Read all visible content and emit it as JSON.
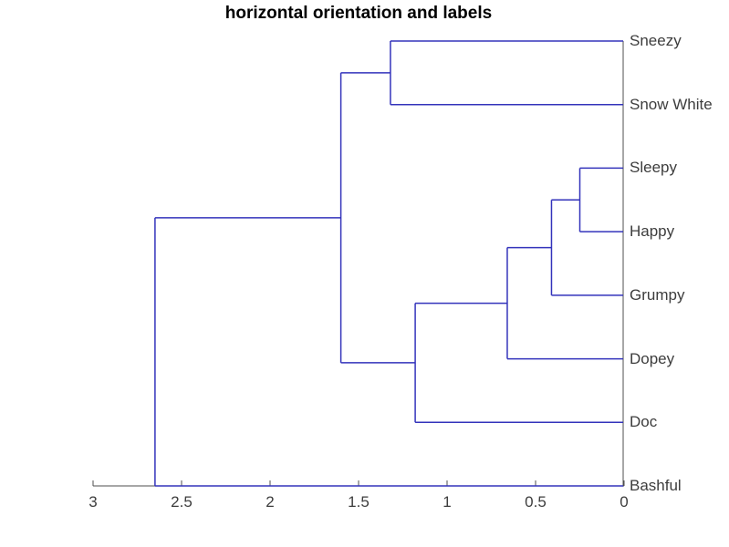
{
  "chart_data": {
    "type": "dendrogram",
    "orientation": "horizontal",
    "title": "horizontal orientation and labels",
    "leaves": [
      "Sneezy",
      "Snow White",
      "Sleepy",
      "Happy",
      "Grumpy",
      "Dopey",
      "Doc",
      "Bashful"
    ],
    "merges": [
      {
        "id": "M1",
        "a": "Sleepy",
        "b": "Happy",
        "distance": 0.25
      },
      {
        "id": "M2",
        "a": "M1",
        "b": "Grumpy",
        "distance": 0.41
      },
      {
        "id": "M3",
        "a": "M2",
        "b": "Dopey",
        "distance": 0.66
      },
      {
        "id": "M4",
        "a": "M3",
        "b": "Doc",
        "distance": 1.18
      },
      {
        "id": "M5",
        "a": "Sneezy",
        "b": "Snow White",
        "distance": 1.32
      },
      {
        "id": "M6",
        "a": "M5",
        "b": "M4",
        "distance": 1.6
      },
      {
        "id": "M7",
        "a": "M6",
        "b": "Bashful",
        "distance": 2.65
      }
    ],
    "x_axis": {
      "min": 0,
      "max": 3,
      "direction": "reversed",
      "tick_values": [
        3,
        2.5,
        2,
        1.5,
        1,
        0.5,
        0
      ],
      "tick_labels": [
        "3",
        "2.5",
        "2",
        "1.5",
        "1",
        "0.5",
        "0"
      ]
    },
    "legend": null,
    "grid": false,
    "colors": {
      "line": "#3333bb",
      "axis": "#4f4f4f",
      "text": "#3d3d3d",
      "title": "#000000",
      "background": "#ffffff"
    }
  }
}
